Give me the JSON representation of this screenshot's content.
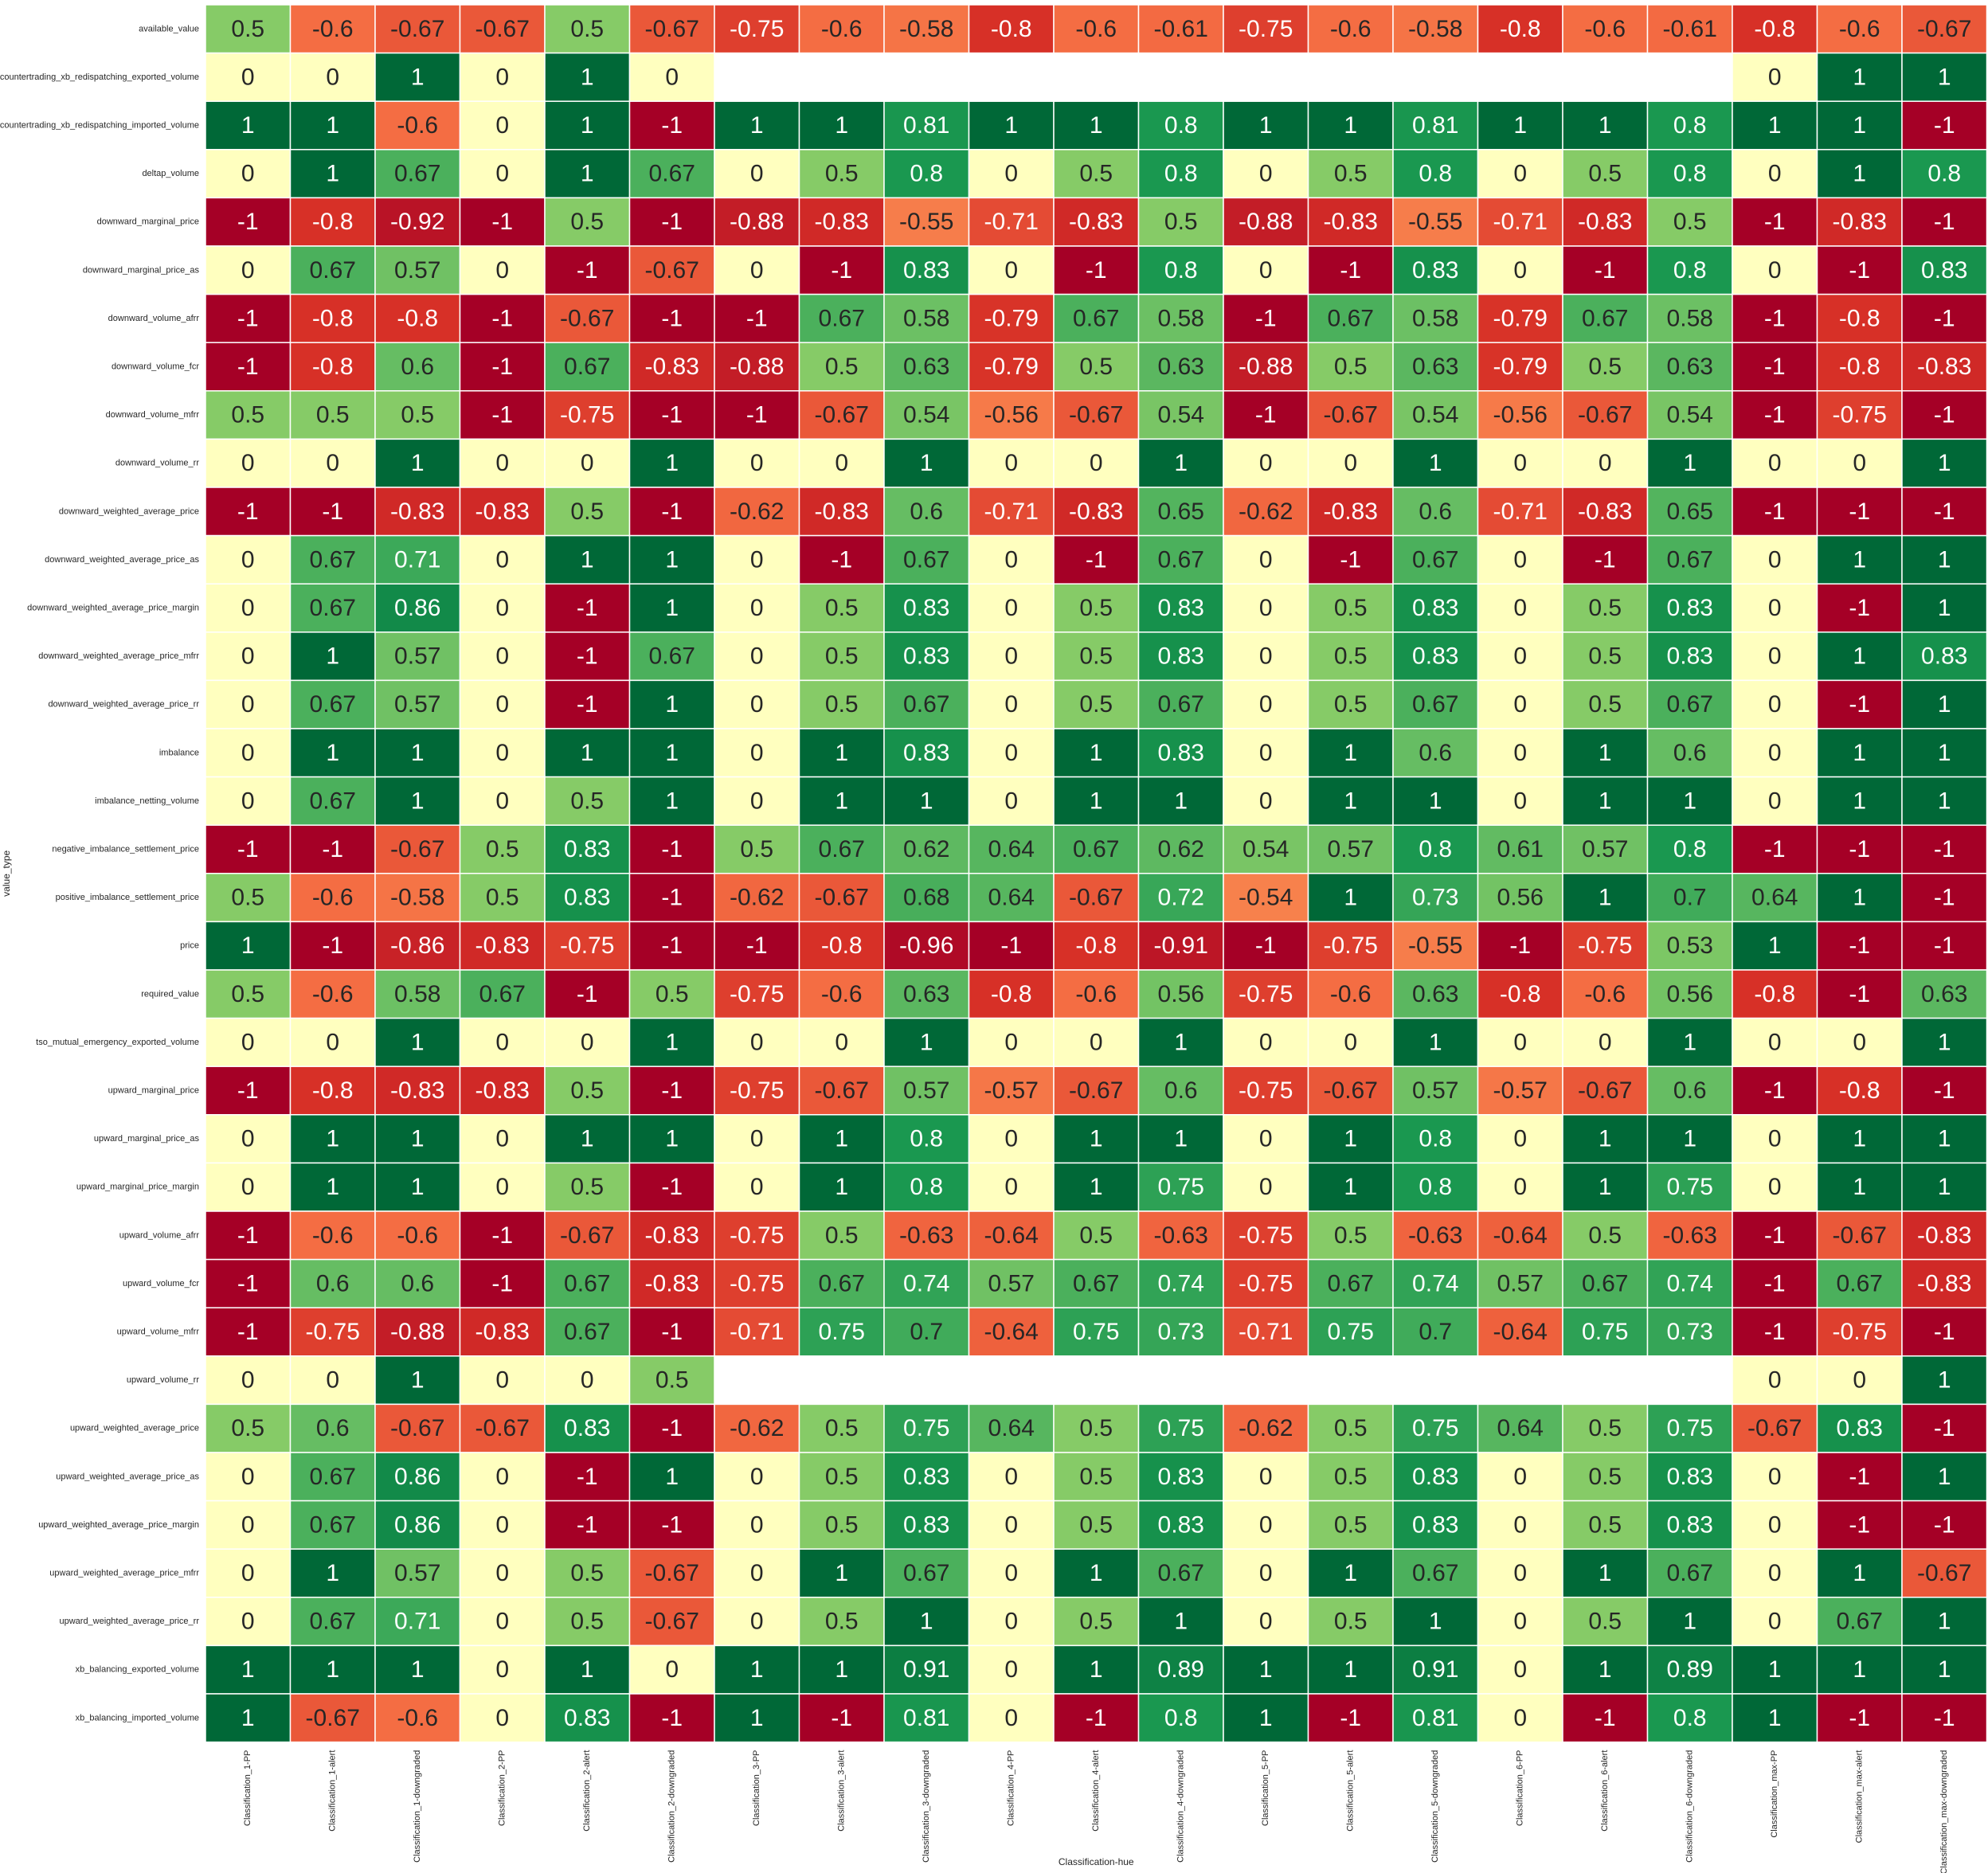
{
  "chart_data": {
    "type": "heatmap",
    "xlabel": "Classification-hue",
    "ylabel": "value_type",
    "colormap": "RdYlGn",
    "vmin": -1,
    "vmax": 1,
    "cell_border_color": "#ffffff",
    "annotated": true,
    "columns": [
      "Classification_1-PP",
      "Classification_1-alert",
      "Classification_1-downgraded",
      "Classification_2-PP",
      "Classification_2-alert",
      "Classification_2-downgraded",
      "Classification_3-PP",
      "Classification_3-alert",
      "Classification_3-downgraded",
      "Classification_4-PP",
      "Classification_4-alert",
      "Classification_4-downgraded",
      "Classification_5-PP",
      "Classification_5-alert",
      "Classification_5-downgraded",
      "Classification_6-PP",
      "Classification_6-alert",
      "Classification_6-downgraded",
      "Classification_max-PP",
      "Classification_max-alert",
      "Classification_max-downgraded"
    ],
    "rows": [
      "available_value",
      "countertrading_xb_redispatching_exported_volume",
      "countertrading_xb_redispatching_imported_volume",
      "deltap_volume",
      "downward_marginal_price",
      "downward_marginal_price_as",
      "downward_volume_afrr",
      "downward_volume_fcr",
      "downward_volume_mfrr",
      "downward_volume_rr",
      "downward_weighted_average_price",
      "downward_weighted_average_price_as",
      "downward_weighted_average_price_margin",
      "downward_weighted_average_price_mfrr",
      "downward_weighted_average_price_rr",
      "imbalance",
      "imbalance_netting_volume",
      "negative_imbalance_settlement_price",
      "positive_imbalance_settlement_price",
      "price",
      "required_value",
      "tso_mutual_emergency_exported_volume",
      "upward_marginal_price",
      "upward_marginal_price_as",
      "upward_marginal_price_margin",
      "upward_volume_afrr",
      "upward_volume_fcr",
      "upward_volume_mfrr",
      "upward_volume_rr",
      "upward_weighted_average_price",
      "upward_weighted_average_price_as",
      "upward_weighted_average_price_margin",
      "upward_weighted_average_price_mfrr",
      "upward_weighted_average_price_rr",
      "xb_balancing_exported_volume",
      "xb_balancing_imported_volume"
    ],
    "values": [
      [
        0.5,
        -0.6,
        -0.67,
        -0.67,
        0.5,
        -0.67,
        -0.75,
        -0.6,
        -0.58,
        -0.8,
        -0.6,
        -0.61,
        -0.75,
        -0.6,
        -0.58,
        -0.8,
        -0.6,
        -0.61,
        -0.8,
        -0.6,
        -0.67
      ],
      [
        0,
        0,
        1,
        0,
        1,
        0,
        null,
        null,
        null,
        null,
        null,
        null,
        null,
        null,
        null,
        null,
        null,
        null,
        0,
        1,
        1
      ],
      [
        1,
        1,
        -0.6,
        0,
        1,
        -1,
        1,
        1,
        0.81,
        1,
        1,
        0.8,
        1,
        1,
        0.81,
        1,
        1,
        0.8,
        1,
        1,
        -1
      ],
      [
        0,
        1,
        0.67,
        0,
        1,
        0.67,
        0,
        0.5,
        0.8,
        0,
        0.5,
        0.8,
        0,
        0.5,
        0.8,
        0,
        0.5,
        0.8,
        0,
        1,
        0.8
      ],
      [
        -1,
        -0.8,
        -0.92,
        -1,
        0.5,
        -1,
        -0.88,
        -0.83,
        -0.55,
        -0.71,
        -0.83,
        0.5,
        -0.88,
        -0.83,
        -0.55,
        -0.71,
        -0.83,
        0.5,
        -1,
        -0.83,
        -1
      ],
      [
        0,
        0.67,
        0.57,
        0,
        -1,
        -0.67,
        0,
        -1,
        0.83,
        0,
        -1,
        0.8,
        0,
        -1,
        0.83,
        0,
        -1,
        0.8,
        0,
        -1,
        0.83
      ],
      [
        -1,
        -0.8,
        -0.8,
        -1,
        -0.67,
        -1,
        -1,
        0.67,
        0.58,
        -0.79,
        0.67,
        0.58,
        -1,
        0.67,
        0.58,
        -0.79,
        0.67,
        0.58,
        -1,
        -0.8,
        -1
      ],
      [
        -1,
        -0.8,
        0.6,
        -1,
        0.67,
        -0.83,
        -0.88,
        0.5,
        0.63,
        -0.79,
        0.5,
        0.63,
        -0.88,
        0.5,
        0.63,
        -0.79,
        0.5,
        0.63,
        -1,
        -0.8,
        -0.83
      ],
      [
        0.5,
        0.5,
        0.5,
        -1,
        -0.75,
        -1,
        -1,
        -0.67,
        0.54,
        -0.56,
        -0.67,
        0.54,
        -1,
        -0.67,
        0.54,
        -0.56,
        -0.67,
        0.54,
        -1,
        -0.75,
        -1
      ],
      [
        0,
        0,
        1,
        0,
        0,
        1,
        0,
        0,
        1,
        0,
        0,
        1,
        0,
        0,
        1,
        0,
        0,
        1,
        0,
        0,
        1
      ],
      [
        -1,
        -1,
        -0.83,
        -0.83,
        0.5,
        -1,
        -0.62,
        -0.83,
        0.6,
        -0.71,
        -0.83,
        0.65,
        -0.62,
        -0.83,
        0.6,
        -0.71,
        -0.83,
        0.65,
        -1,
        -1,
        -1
      ],
      [
        0,
        0.67,
        0.71,
        0,
        1,
        1,
        0,
        -1,
        0.67,
        0,
        -1,
        0.67,
        0,
        -1,
        0.67,
        0,
        -1,
        0.67,
        0,
        1,
        1
      ],
      [
        0,
        0.67,
        0.86,
        0,
        -1,
        1,
        0,
        0.5,
        0.83,
        0,
        0.5,
        0.83,
        0,
        0.5,
        0.83,
        0,
        0.5,
        0.83,
        0,
        -1,
        1
      ],
      [
        0,
        1,
        0.57,
        0,
        -1,
        0.67,
        0,
        0.5,
        0.83,
        0,
        0.5,
        0.83,
        0,
        0.5,
        0.83,
        0,
        0.5,
        0.83,
        0,
        1,
        0.83
      ],
      [
        0,
        0.67,
        0.57,
        0,
        -1,
        1,
        0,
        0.5,
        0.67,
        0,
        0.5,
        0.67,
        0,
        0.5,
        0.67,
        0,
        0.5,
        0.67,
        0,
        -1,
        1
      ],
      [
        0,
        1,
        1,
        0,
        1,
        1,
        0,
        1,
        0.83,
        0,
        1,
        0.83,
        0,
        1,
        0.6,
        0,
        1,
        0.6,
        0,
        1,
        1
      ],
      [
        0,
        0.67,
        1,
        0,
        0.5,
        1,
        0,
        1,
        1,
        0,
        1,
        1,
        0,
        1,
        1,
        0,
        1,
        1,
        0,
        1,
        1
      ],
      [
        -1,
        -1,
        -0.67,
        0.5,
        0.83,
        -1,
        0.5,
        0.67,
        0.62,
        0.64,
        0.67,
        0.62,
        0.54,
        0.57,
        0.8,
        0.61,
        0.57,
        0.8,
        -1,
        -1,
        -1
      ],
      [
        0.5,
        -0.6,
        -0.58,
        0.5,
        0.83,
        -1,
        -0.62,
        -0.67,
        0.68,
        0.64,
        -0.67,
        0.72,
        -0.54,
        1,
        0.73,
        0.56,
        1,
        0.7,
        0.64,
        1,
        -1
      ],
      [
        1,
        -1,
        -0.86,
        -0.83,
        -0.75,
        -1,
        -1,
        -0.8,
        -0.96,
        -1,
        -0.8,
        -0.91,
        -1,
        -0.75,
        -0.55,
        -1,
        -0.75,
        0.53,
        1,
        -1,
        -1
      ],
      [
        0.5,
        -0.6,
        0.58,
        0.67,
        -1,
        0.5,
        -0.75,
        -0.6,
        0.63,
        -0.8,
        -0.6,
        0.56,
        -0.75,
        -0.6,
        0.63,
        -0.8,
        -0.6,
        0.56,
        -0.8,
        -1,
        0.63
      ],
      [
        0,
        0,
        1,
        0,
        0,
        1,
        0,
        0,
        1,
        0,
        0,
        1,
        0,
        0,
        1,
        0,
        0,
        1,
        0,
        0,
        1
      ],
      [
        -1,
        -0.8,
        -0.83,
        -0.83,
        0.5,
        -1,
        -0.75,
        -0.67,
        0.57,
        -0.57,
        -0.67,
        0.6,
        -0.75,
        -0.67,
        0.57,
        -0.57,
        -0.67,
        0.6,
        -1,
        -0.8,
        -1
      ],
      [
        0,
        1,
        1,
        0,
        1,
        1,
        0,
        1,
        0.8,
        0,
        1,
        1,
        0,
        1,
        0.8,
        0,
        1,
        1,
        0,
        1,
        1
      ],
      [
        0,
        1,
        1,
        0,
        0.5,
        -1,
        0,
        1,
        0.8,
        0,
        1,
        0.75,
        0,
        1,
        0.8,
        0,
        1,
        0.75,
        0,
        1,
        1
      ],
      [
        -1,
        -0.6,
        -0.6,
        -1,
        -0.67,
        -0.83,
        -0.75,
        0.5,
        -0.63,
        -0.64,
        0.5,
        -0.63,
        -0.75,
        0.5,
        -0.63,
        -0.64,
        0.5,
        -0.63,
        -1,
        -0.67,
        -0.83
      ],
      [
        -1,
        0.6,
        0.6,
        -1,
        0.67,
        -0.83,
        -0.75,
        0.67,
        0.74,
        0.57,
        0.67,
        0.74,
        -0.75,
        0.67,
        0.74,
        0.57,
        0.67,
        0.74,
        -1,
        0.67,
        -0.83
      ],
      [
        -1,
        -0.75,
        -0.88,
        -0.83,
        0.67,
        -1,
        -0.71,
        0.75,
        0.7,
        -0.64,
        0.75,
        0.73,
        -0.71,
        0.75,
        0.7,
        -0.64,
        0.75,
        0.73,
        -1,
        -0.75,
        -1
      ],
      [
        0,
        0,
        1,
        0,
        0,
        0.5,
        null,
        null,
        null,
        null,
        null,
        null,
        null,
        null,
        null,
        null,
        null,
        null,
        0,
        0,
        1
      ],
      [
        0.5,
        0.6,
        -0.67,
        -0.67,
        0.83,
        -1,
        -0.62,
        0.5,
        0.75,
        0.64,
        0.5,
        0.75,
        -0.62,
        0.5,
        0.75,
        0.64,
        0.5,
        0.75,
        -0.67,
        0.83,
        -1
      ],
      [
        0,
        0.67,
        0.86,
        0,
        -1,
        1,
        0,
        0.5,
        0.83,
        0,
        0.5,
        0.83,
        0,
        0.5,
        0.83,
        0,
        0.5,
        0.83,
        0,
        -1,
        1
      ],
      [
        0,
        0.67,
        0.86,
        0,
        -1,
        -1,
        0,
        0.5,
        0.83,
        0,
        0.5,
        0.83,
        0,
        0.5,
        0.83,
        0,
        0.5,
        0.83,
        0,
        -1,
        -1
      ],
      [
        0,
        1,
        0.57,
        0,
        0.5,
        -0.67,
        0,
        1,
        0.67,
        0,
        1,
        0.67,
        0,
        1,
        0.67,
        0,
        1,
        0.67,
        0,
        1,
        -0.67
      ],
      [
        0,
        0.67,
        0.71,
        0,
        0.5,
        -0.67,
        0,
        0.5,
        1,
        0,
        0.5,
        1,
        0,
        0.5,
        1,
        0,
        0.5,
        1,
        0,
        0.67,
        1
      ],
      [
        1,
        1,
        1,
        0,
        1,
        0,
        1,
        1,
        0.91,
        0,
        1,
        0.89,
        1,
        1,
        0.91,
        0,
        1,
        0.89,
        1,
        1,
        1
      ],
      [
        1,
        -0.67,
        -0.6,
        0,
        0.83,
        -1,
        1,
        -1,
        0.81,
        0,
        -1,
        0.8,
        1,
        -1,
        0.81,
        0,
        -1,
        0.8,
        1,
        -1,
        -1
      ]
    ]
  }
}
